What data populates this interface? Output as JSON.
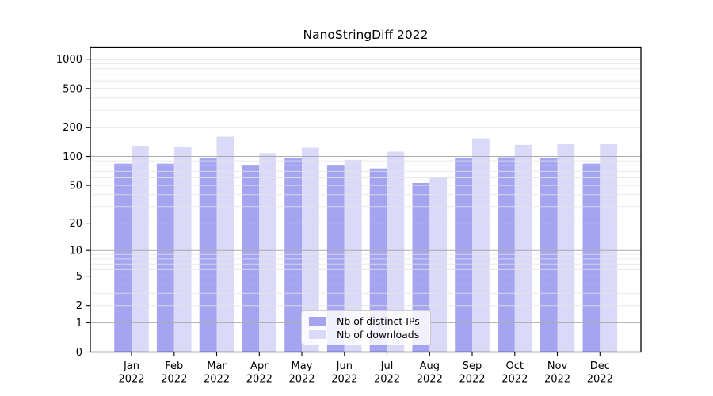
{
  "chart_data": {
    "type": "bar",
    "title": "NanoStringDiff 2022",
    "categories": [
      "Jan",
      "Feb",
      "Mar",
      "Apr",
      "May",
      "Jun",
      "Jul",
      "Aug",
      "Sep",
      "Oct",
      "Nov",
      "Dec"
    ],
    "year_label": "2022",
    "series": [
      {
        "name": "Nb of distinct IPs",
        "color": "#a4a4f1",
        "values": [
          84,
          84,
          97,
          82,
          97,
          82,
          75,
          53,
          97,
          98,
          97,
          84
        ]
      },
      {
        "name": "Nb of downloads",
        "color": "#dadaf8",
        "values": [
          129,
          126,
          160,
          108,
          123,
          92,
          112,
          61,
          154,
          132,
          134,
          134
        ]
      }
    ],
    "yscale": "log10(1+y)",
    "ylim": [
      0,
      1330
    ],
    "ytick_values": [
      0,
      1,
      2,
      5,
      10,
      20,
      50,
      100,
      200,
      500,
      1000
    ],
    "ytick_labels": [
      "0",
      "1",
      "2",
      "5",
      "10",
      "20",
      "50",
      "100",
      "200",
      "500",
      "1000"
    ],
    "major_gridlines": [
      1,
      10,
      100,
      1000
    ],
    "grid_major_color": "#ababab",
    "grid_minor_color": "#e4e4e4",
    "axis_color": "#000000",
    "background": "#ffffff",
    "legend": {
      "items": [
        "Nb of distinct IPs",
        "Nb of downloads"
      ],
      "position": "lower center"
    }
  }
}
